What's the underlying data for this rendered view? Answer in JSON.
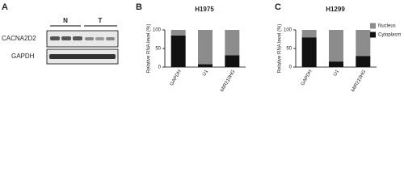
{
  "panel_labels": [
    "A",
    "B",
    "C"
  ],
  "blot": {
    "groups": [
      "N",
      "T"
    ],
    "rows": [
      "CACNA2D2",
      "GAPDH"
    ]
  },
  "chart_data": [
    {
      "type": "stacked-bar",
      "title": "H1975",
      "y_label": "Relative RNA level (%)",
      "categories": [
        "GAPDH",
        "U1",
        "MIR210HG"
      ],
      "series": [
        {
          "color": "#111111",
          "values": [
            85,
            8,
            32
          ]
        },
        {
          "color": "#8c8c8c",
          "values": [
            15,
            92,
            68
          ]
        }
      ],
      "ylim": [
        0,
        100
      ],
      "yticks": [
        0,
        50,
        100
      ]
    },
    {
      "type": "stacked-bar",
      "title": "H1299",
      "y_label": "Relative RNA level (%)",
      "categories": [
        "GAPDH",
        "U1",
        "MIR210HG"
      ],
      "series": [
        {
          "name": "Cytoplasm",
          "color": "#111111",
          "values": [
            80,
            15,
            30
          ]
        },
        {
          "name": "Nucleus",
          "color": "#8c8c8c",
          "values": [
            20,
            85,
            70
          ]
        }
      ],
      "ylim": [
        0,
        100
      ],
      "yticks": [
        0,
        50,
        100
      ],
      "legend": "upper right"
    }
  ]
}
